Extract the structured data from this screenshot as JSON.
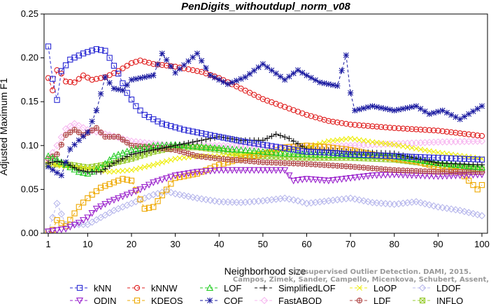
{
  "chart_data": {
    "type": "line",
    "title": "PenDigits_withoutdupl_norm_v08",
    "xlabel": "Neighborhood size",
    "ylabel": "Adjusted Maximum F1",
    "xlim": [
      1,
      100
    ],
    "ylim": [
      0,
      0.25
    ],
    "xticks": [
      "1",
      "10",
      "20",
      "30",
      "40",
      "50",
      "60",
      "70",
      "80",
      "90",
      "100"
    ],
    "yticks": [
      "0.00",
      "0.05",
      "0.10",
      "0.15",
      "0.20",
      "0.25"
    ],
    "grid": false,
    "legend_position": "bottom",
    "credit": [
      "Unsupervised Outlier Detection. DAMI, 2015.",
      "Campos, Zimek, Sander, Campello, Micenkova, Schubert, Assent, Houle"
    ],
    "series": [
      {
        "name": "kNN",
        "color": "#2b2bd4",
        "marker": "square",
        "anchors": [
          [
            1,
            0.213
          ],
          [
            2,
            0.176
          ],
          [
            3,
            0.152
          ],
          [
            4,
            0.185
          ],
          [
            6,
            0.198
          ],
          [
            9,
            0.205
          ],
          [
            12,
            0.21
          ],
          [
            14,
            0.208
          ],
          [
            15,
            0.2
          ],
          [
            17,
            0.182
          ],
          [
            19,
            0.16
          ],
          [
            21,
            0.145
          ],
          [
            23,
            0.135
          ],
          [
            27,
            0.125
          ],
          [
            32,
            0.118
          ],
          [
            38,
            0.112
          ],
          [
            45,
            0.105
          ],
          [
            55,
            0.097
          ],
          [
            60,
            0.093
          ],
          [
            65,
            0.092
          ],
          [
            70,
            0.09
          ],
          [
            80,
            0.088
          ],
          [
            90,
            0.086
          ],
          [
            100,
            0.084
          ]
        ]
      },
      {
        "name": "kNNW",
        "color": "#e02020",
        "marker": "circle",
        "anchors": [
          [
            1,
            0.177
          ],
          [
            2,
            0.163
          ],
          [
            3,
            0.186
          ],
          [
            4,
            0.182
          ],
          [
            5,
            0.173
          ],
          [
            7,
            0.172
          ],
          [
            9,
            0.18
          ],
          [
            11,
            0.175
          ],
          [
            14,
            0.178
          ],
          [
            17,
            0.185
          ],
          [
            20,
            0.194
          ],
          [
            22,
            0.197
          ],
          [
            25,
            0.193
          ],
          [
            30,
            0.19
          ],
          [
            36,
            0.184
          ],
          [
            40,
            0.177
          ],
          [
            45,
            0.165
          ],
          [
            50,
            0.153
          ],
          [
            55,
            0.144
          ],
          [
            60,
            0.135
          ],
          [
            65,
            0.128
          ],
          [
            70,
            0.124
          ],
          [
            80,
            0.12
          ],
          [
            90,
            0.117
          ],
          [
            100,
            0.111
          ]
        ]
      },
      {
        "name": "LOF",
        "color": "#22cc22",
        "marker": "triangle",
        "anchors": [
          [
            1,
            0.088
          ],
          [
            3,
            0.084
          ],
          [
            5,
            0.078
          ],
          [
            8,
            0.07
          ],
          [
            10,
            0.068
          ],
          [
            13,
            0.075
          ],
          [
            16,
            0.088
          ],
          [
            20,
            0.095
          ],
          [
            25,
            0.1
          ],
          [
            30,
            0.101
          ],
          [
            35,
            0.099
          ],
          [
            40,
            0.097
          ],
          [
            45,
            0.095
          ],
          [
            50,
            0.093
          ],
          [
            55,
            0.091
          ],
          [
            60,
            0.09
          ],
          [
            70,
            0.089
          ],
          [
            80,
            0.088
          ],
          [
            90,
            0.08
          ],
          [
            100,
            0.075
          ]
        ]
      },
      {
        "name": "SimplifiedLOF",
        "color": "#111111",
        "marker": "plus",
        "anchors": [
          [
            1,
            0.08
          ],
          [
            3,
            0.082
          ],
          [
            5,
            0.08
          ],
          [
            8,
            0.072
          ],
          [
            10,
            0.07
          ],
          [
            13,
            0.07
          ],
          [
            16,
            0.08
          ],
          [
            20,
            0.09
          ],
          [
            25,
            0.095
          ],
          [
            30,
            0.1
          ],
          [
            35,
            0.105
          ],
          [
            40,
            0.11
          ],
          [
            45,
            0.106
          ],
          [
            50,
            0.106
          ],
          [
            53,
            0.113
          ],
          [
            56,
            0.108
          ],
          [
            60,
            0.096
          ],
          [
            70,
            0.093
          ],
          [
            80,
            0.091
          ],
          [
            90,
            0.08
          ],
          [
            100,
            0.078
          ]
        ]
      },
      {
        "name": "LoOP",
        "color": "#eeee10",
        "marker": "x",
        "anchors": [
          [
            1,
            0.079
          ],
          [
            5,
            0.076
          ],
          [
            10,
            0.074
          ],
          [
            15,
            0.07
          ],
          [
            20,
            0.072
          ],
          [
            25,
            0.078
          ],
          [
            30,
            0.085
          ],
          [
            35,
            0.088
          ],
          [
            40,
            0.088
          ],
          [
            45,
            0.09
          ],
          [
            50,
            0.092
          ],
          [
            55,
            0.095
          ],
          [
            60,
            0.098
          ],
          [
            65,
            0.105
          ],
          [
            70,
            0.108
          ],
          [
            75,
            0.104
          ],
          [
            80,
            0.101
          ],
          [
            90,
            0.092
          ],
          [
            100,
            0.085
          ]
        ]
      },
      {
        "name": "LDOF",
        "color": "#b8b8ec",
        "marker": "diamond",
        "anchors": [
          [
            1,
            0.002
          ],
          [
            3,
            0.034
          ],
          [
            5,
            0.01
          ],
          [
            8,
            0.01
          ],
          [
            10,
            0.01
          ],
          [
            13,
            0.018
          ],
          [
            16,
            0.026
          ],
          [
            20,
            0.034
          ],
          [
            25,
            0.044
          ],
          [
            28,
            0.048
          ],
          [
            30,
            0.045
          ],
          [
            35,
            0.04
          ],
          [
            40,
            0.036
          ],
          [
            45,
            0.035
          ],
          [
            50,
            0.037
          ],
          [
            55,
            0.04
          ],
          [
            58,
            0.037
          ],
          [
            60,
            0.034
          ],
          [
            65,
            0.037
          ],
          [
            70,
            0.04
          ],
          [
            75,
            0.035
          ],
          [
            80,
            0.033
          ],
          [
            85,
            0.036
          ],
          [
            90,
            0.03
          ],
          [
            95,
            0.026
          ],
          [
            100,
            0.02
          ]
        ]
      },
      {
        "name": "ODIN",
        "color": "#9a22cc",
        "marker": "triangle-down",
        "anchors": [
          [
            1,
            0.002
          ],
          [
            5,
            0.005
          ],
          [
            8,
            0.012
          ],
          [
            10,
            0.018
          ],
          [
            12,
            0.028
          ],
          [
            15,
            0.036
          ],
          [
            18,
            0.042
          ],
          [
            22,
            0.05
          ],
          [
            25,
            0.058
          ],
          [
            30,
            0.066
          ],
          [
            35,
            0.07
          ],
          [
            40,
            0.072
          ],
          [
            45,
            0.072
          ],
          [
            50,
            0.072
          ],
          [
            55,
            0.072
          ],
          [
            57,
            0.06
          ],
          [
            60,
            0.062
          ],
          [
            65,
            0.06
          ],
          [
            70,
            0.063
          ],
          [
            75,
            0.066
          ],
          [
            80,
            0.067
          ],
          [
            85,
            0.066
          ],
          [
            90,
            0.065
          ],
          [
            95,
            0.066
          ],
          [
            100,
            0.067
          ]
        ]
      },
      {
        "name": "KDEOS",
        "color": "#eea800",
        "marker": "square",
        "anchors": [
          [
            1,
            0.002
          ],
          [
            2,
            0.004
          ],
          [
            3,
            0.015
          ],
          [
            5,
            0.008
          ],
          [
            8,
            0.03
          ],
          [
            10,
            0.04
          ],
          [
            13,
            0.052
          ],
          [
            16,
            0.058
          ],
          [
            18,
            0.062
          ],
          [
            20,
            0.06
          ],
          [
            23,
            0.028
          ],
          [
            25,
            0.03
          ],
          [
            30,
            0.063
          ],
          [
            35,
            0.068
          ],
          [
            40,
            0.078
          ],
          [
            45,
            0.085
          ],
          [
            50,
            0.09
          ],
          [
            55,
            0.098
          ],
          [
            60,
            0.1
          ],
          [
            65,
            0.098
          ],
          [
            70,
            0.095
          ],
          [
            75,
            0.09
          ],
          [
            80,
            0.085
          ],
          [
            85,
            0.082
          ],
          [
            90,
            0.075
          ],
          [
            95,
            0.07
          ],
          [
            99,
            0.05
          ],
          [
            100,
            0.055
          ]
        ]
      },
      {
        "name": "COF",
        "color": "#1a1aa0",
        "marker": "star",
        "anchors": [
          [
            1,
            0.076
          ],
          [
            3,
            0.069
          ],
          [
            4,
            0.066
          ],
          [
            6,
            0.096
          ],
          [
            8,
            0.106
          ],
          [
            10,
            0.115
          ],
          [
            12,
            0.14
          ],
          [
            14,
            0.178
          ],
          [
            16,
            0.165
          ],
          [
            18,
            0.163
          ],
          [
            20,
            0.175
          ],
          [
            25,
            0.18
          ],
          [
            27,
            0.205
          ],
          [
            30,
            0.183
          ],
          [
            35,
            0.205
          ],
          [
            38,
            0.18
          ],
          [
            42,
            0.17
          ],
          [
            46,
            0.178
          ],
          [
            50,
            0.193
          ],
          [
            55,
            0.175
          ],
          [
            58,
            0.186
          ],
          [
            60,
            0.18
          ],
          [
            63,
            0.172
          ],
          [
            67,
            0.168
          ],
          [
            69,
            0.203
          ],
          [
            70,
            0.16
          ],
          [
            71,
            0.14
          ],
          [
            75,
            0.145
          ],
          [
            80,
            0.14
          ],
          [
            85,
            0.145
          ],
          [
            88,
            0.136
          ],
          [
            91,
            0.14
          ],
          [
            95,
            0.13
          ],
          [
            100,
            0.145
          ]
        ]
      },
      {
        "name": "FastABOD",
        "color": "#f7b8f0",
        "marker": "diamond",
        "anchors": [
          [
            1,
            0.084
          ],
          [
            3,
            0.1
          ],
          [
            5,
            0.119
          ],
          [
            7,
            0.125
          ],
          [
            10,
            0.118
          ],
          [
            15,
            0.112
          ],
          [
            20,
            0.105
          ],
          [
            25,
            0.102
          ],
          [
            30,
            0.1
          ],
          [
            40,
            0.1
          ],
          [
            50,
            0.098
          ],
          [
            60,
            0.098
          ],
          [
            70,
            0.1
          ],
          [
            80,
            0.102
          ],
          [
            90,
            0.104
          ],
          [
            100,
            0.105
          ]
        ]
      },
      {
        "name": "LDF",
        "color": "#b04848",
        "marker": "circle-plus",
        "anchors": [
          [
            1,
            0.085
          ],
          [
            3,
            0.09
          ],
          [
            5,
            0.112
          ],
          [
            7,
            0.118
          ],
          [
            9,
            0.112
          ],
          [
            12,
            0.12
          ],
          [
            14,
            0.11
          ],
          [
            17,
            0.11
          ],
          [
            20,
            0.1
          ],
          [
            25,
            0.098
          ],
          [
            30,
            0.095
          ],
          [
            35,
            0.088
          ],
          [
            40,
            0.085
          ],
          [
            45,
            0.083
          ],
          [
            50,
            0.081
          ],
          [
            55,
            0.08
          ],
          [
            60,
            0.079
          ],
          [
            70,
            0.076
          ],
          [
            80,
            0.072
          ],
          [
            90,
            0.07
          ],
          [
            100,
            0.07
          ]
        ]
      },
      {
        "name": "INFLO",
        "color": "#99cc33",
        "marker": "asterisk",
        "anchors": [
          [
            1,
            0.078
          ],
          [
            5,
            0.079
          ],
          [
            10,
            0.075
          ],
          [
            15,
            0.079
          ],
          [
            20,
            0.085
          ],
          [
            25,
            0.093
          ],
          [
            30,
            0.098
          ],
          [
            35,
            0.098
          ],
          [
            40,
            0.095
          ],
          [
            45,
            0.09
          ],
          [
            50,
            0.088
          ],
          [
            55,
            0.087
          ],
          [
            60,
            0.086
          ],
          [
            70,
            0.086
          ],
          [
            80,
            0.084
          ],
          [
            90,
            0.078
          ],
          [
            100,
            0.073
          ]
        ]
      }
    ]
  }
}
